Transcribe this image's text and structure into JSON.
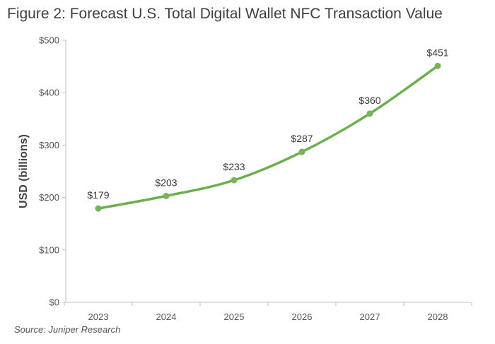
{
  "figure": {
    "title": "Figure 2: Forecast U.S. Total Digital Wallet NFC Transaction Value",
    "source": "Source: Juniper Research"
  },
  "colors": {
    "line": "#6ab04c",
    "marker": "#7bb159",
    "grid": "#d9d9d9",
    "axis": "#bfbfbf"
  },
  "chart_data": {
    "type": "line",
    "title": "Figure 2: Forecast U.S. Total Digital Wallet NFC Transaction Value",
    "categories": [
      "2023",
      "2024",
      "2025",
      "2026",
      "2027",
      "2028"
    ],
    "values": [
      179,
      203,
      233,
      287,
      360,
      451
    ],
    "data_labels": [
      "$179",
      "$203",
      "$233",
      "$287",
      "$360",
      "$451"
    ],
    "xlabel": "",
    "ylabel": "USD (billions)",
    "ylim": [
      0,
      500
    ],
    "yticks": [
      0,
      100,
      200,
      300,
      400,
      500
    ],
    "ytick_labels": [
      "$0",
      "$100",
      "$200",
      "$300",
      "$400",
      "$500"
    ],
    "grid": false,
    "legend": "none"
  }
}
